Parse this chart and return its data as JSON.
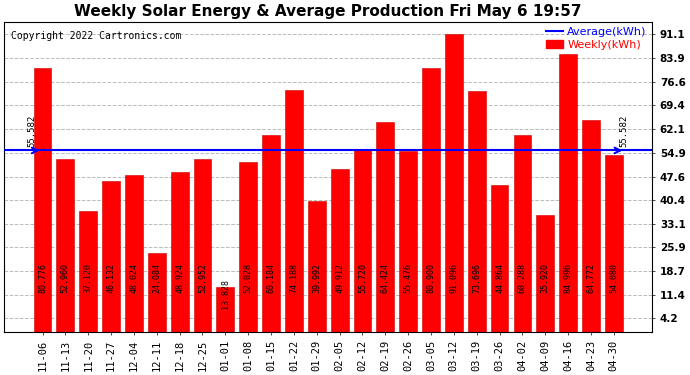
{
  "title": "Weekly Solar Energy & Average Production Fri May 6 19:57",
  "copyright": "Copyright 2022 Cartronics.com",
  "legend_average": "Average(kWh)",
  "legend_weekly": "Weekly(kWh)",
  "average_value": 55.582,
  "categories": [
    "11-06",
    "11-13",
    "11-20",
    "11-27",
    "12-04",
    "12-11",
    "12-18",
    "12-25",
    "01-01",
    "01-08",
    "01-15",
    "01-22",
    "01-29",
    "02-05",
    "02-12",
    "02-19",
    "02-26",
    "03-05",
    "03-12",
    "03-19",
    "03-26",
    "04-02",
    "04-09",
    "04-16",
    "04-23",
    "04-30"
  ],
  "values": [
    80.776,
    52.96,
    37.12,
    46.132,
    48.024,
    24.084,
    48.924,
    52.952,
    13.828,
    52.028,
    60.184,
    74.188,
    39.992,
    49.912,
    55.72,
    64.424,
    55.476,
    80.9,
    91.096,
    73.696,
    44.864,
    60.288,
    35.92,
    84.996,
    64.772,
    54.08
  ],
  "bar_color": "#ff0000",
  "bar_edge_color": "#cc0000",
  "average_line_color": "#0000ff",
  "background_color": "#ffffff",
  "grid_color": "#bbbbbb",
  "yticks": [
    4.2,
    11.4,
    18.7,
    25.9,
    33.1,
    40.4,
    47.6,
    54.9,
    62.1,
    69.4,
    76.6,
    83.9,
    91.1
  ],
  "ylim": [
    0,
    95
  ],
  "title_fontsize": 11,
  "tick_fontsize": 7.5,
  "bar_label_fontsize": 6,
  "copyright_fontsize": 7,
  "legend_fontsize": 8
}
